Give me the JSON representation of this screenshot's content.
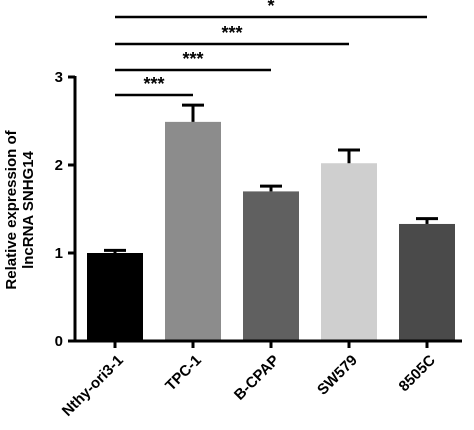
{
  "chart_data": {
    "type": "bar",
    "title": "",
    "xlabel": "",
    "ylabel": "Relative expression of lncRNA SNHG14",
    "ylabel_lines": [
      "Relative expression of",
      "lncRNA SNHG14"
    ],
    "ylim": [
      0,
      3
    ],
    "yticks": [
      0,
      1,
      2,
      3
    ],
    "categories": [
      "Nthy-ori3-1",
      "TPC-1",
      "B-CPAP",
      "SW579",
      "8505C"
    ],
    "values": [
      1.0,
      2.49,
      1.7,
      2.02,
      1.33
    ],
    "errors": [
      0.03,
      0.19,
      0.06,
      0.15,
      0.06
    ],
    "bar_colors": [
      "#000000",
      "#8c8c8c",
      "#606060",
      "#cfcfcf",
      "#4a4a4a"
    ],
    "grid": false,
    "legend": "none",
    "significance": [
      {
        "from": "Nthy-ori3-1",
        "to": "TPC-1",
        "label": "***"
      },
      {
        "from": "Nthy-ori3-1",
        "to": "B-CPAP",
        "label": "***"
      },
      {
        "from": "Nthy-ori3-1",
        "to": "SW579",
        "label": "***"
      },
      {
        "from": "Nthy-ori3-1",
        "to": "8505C",
        "label": "*"
      }
    ]
  }
}
